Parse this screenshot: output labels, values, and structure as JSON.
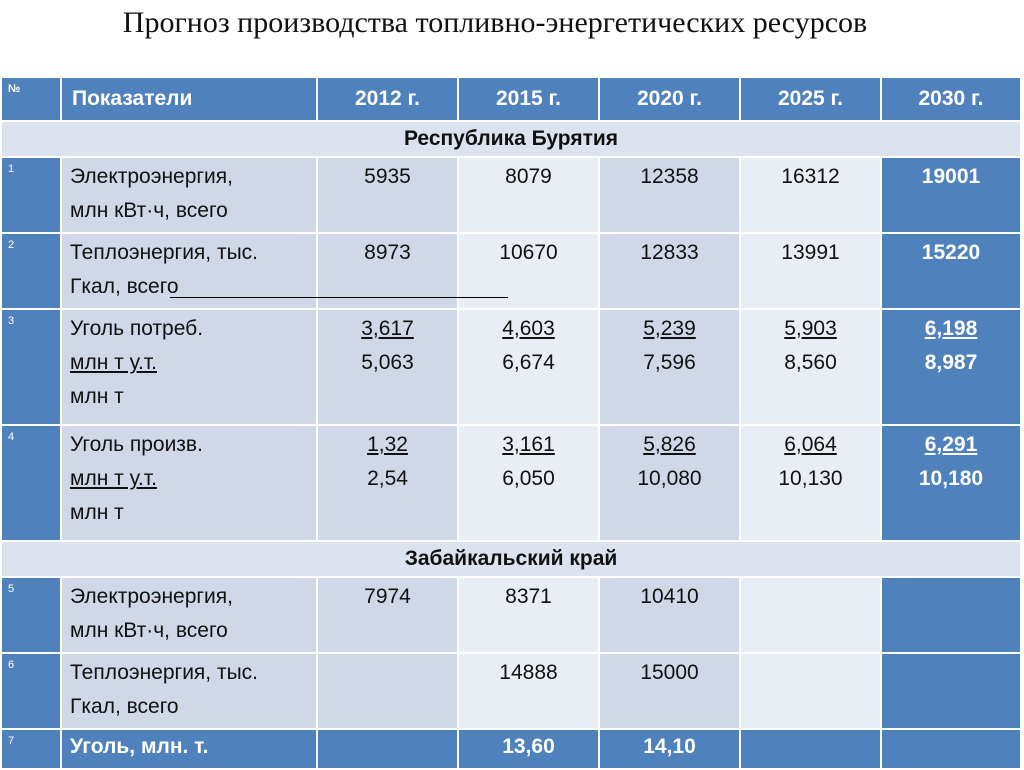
{
  "title": "Прогноз производства топливно-энергетических ресурсов",
  "header": {
    "num": "№",
    "indicator": "Показатели",
    "years": [
      "2012 г.",
      "2015 г.",
      "2020 г.",
      "2025 г.",
      "2030 г."
    ]
  },
  "sections": [
    {
      "name": "Республика Бурятия",
      "rows": [
        {
          "num": "1",
          "label": [
            "Электроэнергия,",
            "млн кВт·ч, всего"
          ],
          "values": [
            [
              "5935"
            ],
            [
              "8079"
            ],
            [
              "12358"
            ],
            [
              "16312"
            ],
            [
              "19001"
            ]
          ]
        },
        {
          "num": "2",
          "label": [
            "Теплоэнергия, тыс.",
            "Гкал, всего"
          ],
          "values": [
            [
              "8973"
            ],
            [
              "10670"
            ],
            [
              "12833"
            ],
            [
              "13991"
            ],
            [
              "15220"
            ]
          ]
        },
        {
          "num": "3",
          "label": [
            "Уголь потреб.",
            "млн т у.т.",
            "млн т"
          ],
          "values": [
            [
              "3,617",
              "5,063"
            ],
            [
              "4,603",
              "6,674"
            ],
            [
              "5,239",
              "7,596"
            ],
            [
              "5,903",
              "8,560"
            ],
            [
              "6,198",
              "8,987"
            ]
          ]
        },
        {
          "num": "4",
          "label": [
            "Уголь произв.",
            "млн т у.т.",
            "млн т"
          ],
          "values": [
            [
              "1,32",
              "2,54"
            ],
            [
              "3,161",
              "6,050"
            ],
            [
              "5,826",
              "10,080"
            ],
            [
              "6,064",
              "10,130"
            ],
            [
              "6,291",
              "10,180"
            ]
          ]
        }
      ]
    },
    {
      "name": "Забайкальский край",
      "rows": [
        {
          "num": "5",
          "label": [
            "Электроэнергия,",
            "млн кВт·ч, всего"
          ],
          "values": [
            [
              "7974"
            ],
            [
              "8371"
            ],
            [
              "10410"
            ],
            [
              ""
            ],
            [
              ""
            ]
          ]
        },
        {
          "num": "6",
          "label": [
            "Теплоэнергия, тыс.",
            "Гкал, всего"
          ],
          "values": [
            [
              ""
            ],
            [
              "14888"
            ],
            [
              "15000"
            ],
            [
              ""
            ],
            [
              ""
            ]
          ]
        },
        {
          "num": "7",
          "label": [
            "Уголь, млн. т."
          ],
          "values": [
            [
              ""
            ],
            [
              "13,60"
            ],
            [
              "14,10"
            ],
            [
              ""
            ],
            [
              ""
            ]
          ]
        }
      ]
    }
  ],
  "colors": {
    "accent": "#4f81bd",
    "cell": "#d0d8e8",
    "cell_alt": "#e9edf4"
  }
}
